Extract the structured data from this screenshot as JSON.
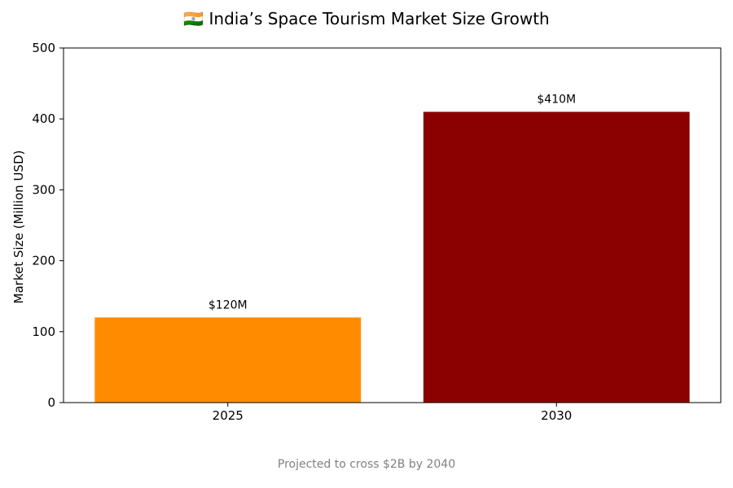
{
  "chart_data": {
    "type": "bar",
    "title": "🇮🇳 India’s Space Tourism Market Size Growth",
    "categories": [
      "2025",
      "2030"
    ],
    "values": [
      120,
      410
    ],
    "value_labels": [
      "$120M",
      "$410M"
    ],
    "colors": [
      "#ff8c00",
      "#8b0000"
    ],
    "xlabel": "",
    "ylabel": "Market Size (Million USD)",
    "ylim": [
      0,
      500
    ],
    "yticks": [
      0,
      100,
      200,
      300,
      400,
      500
    ],
    "grid": false,
    "caption": "Projected to cross $2B by 2040"
  }
}
